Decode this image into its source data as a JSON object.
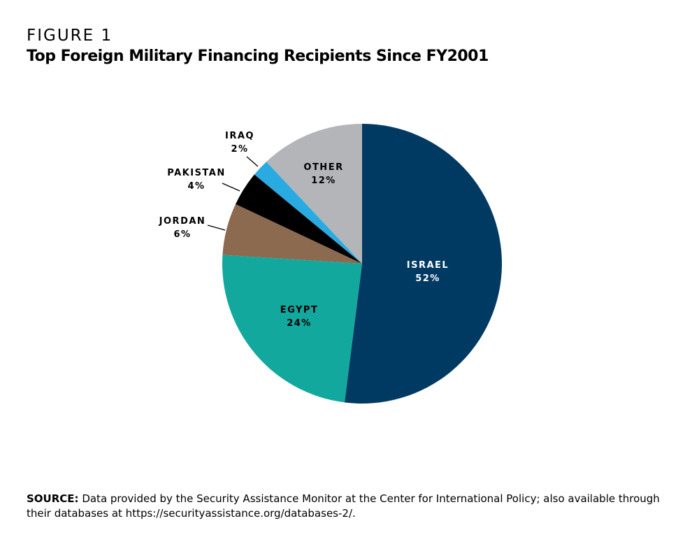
{
  "figure_label": "FIGURE 1",
  "title": "Top Foreign Military Financing Recipients Since FY2001",
  "chart_data": {
    "type": "pie",
    "title": "Top Foreign Military Financing Recipients Since FY2001",
    "start": "12 o'clock",
    "direction": "clockwise",
    "slices": [
      {
        "label": "ISRAEL",
        "value": 52,
        "value_label": "52%",
        "color": "#003a63",
        "label_color": "#ffffff",
        "label_position": "inside"
      },
      {
        "label": "EGYPT",
        "value": 24,
        "value_label": "24%",
        "color": "#13a89e",
        "label_color": "#000000",
        "label_position": "inside"
      },
      {
        "label": "JORDAN",
        "value": 6,
        "value_label": "6%",
        "color": "#8b6a50",
        "label_color": "#000000",
        "label_position": "outside"
      },
      {
        "label": "PAKISTAN",
        "value": 4,
        "value_label": "4%",
        "color": "#000000",
        "label_color": "#000000",
        "label_position": "outside"
      },
      {
        "label": "IRAQ",
        "value": 2,
        "value_label": "2%",
        "color": "#29abe2",
        "label_color": "#000000",
        "label_position": "outside"
      },
      {
        "label": "OTHER",
        "value": 12,
        "value_label": "12%",
        "color": "#b3b5b8",
        "label_color": "#000000",
        "label_position": "inside"
      }
    ]
  },
  "source": {
    "label": "SOURCE:",
    "text": " Data provided by the Security Assistance Monitor at the Center for International Policy; also available through their databases at https://securityassistance.org/databases-2/."
  }
}
